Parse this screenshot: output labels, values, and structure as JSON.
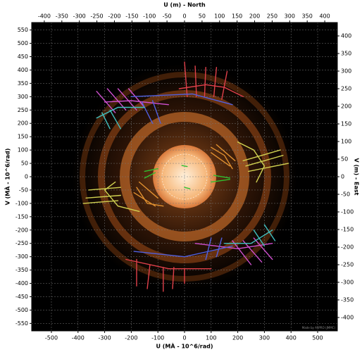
{
  "chart_data": {
    "type": "uv-coverage",
    "x_label": "U (MÀ - 10^6/rad)",
    "y_label": "V (MÀ - 10^6/rad)",
    "x2_label": "U (m) - North",
    "y2_label": "V (m) - East",
    "credit": "Made by ASPRO (JMMC)",
    "xlim": [
      -574,
      574
    ],
    "xticks": [
      -500,
      -400,
      -300,
      -200,
      -100,
      0,
      100,
      200,
      300,
      400,
      500
    ],
    "ylim": [
      -578,
      578
    ],
    "yticks": [
      -550,
      -500,
      -450,
      -400,
      -350,
      -300,
      -250,
      -200,
      -150,
      -100,
      -50,
      0,
      50,
      100,
      150,
      200,
      250,
      300,
      350,
      400,
      450,
      500,
      550
    ],
    "x2lim": [
      -436,
      436
    ],
    "x2ticks": [
      -400,
      -350,
      -300,
      -250,
      -200,
      -150,
      -100,
      -50,
      0,
      50,
      100,
      150,
      200,
      250,
      300,
      350,
      400
    ],
    "y2lim": [
      -438,
      438
    ],
    "y2ticks": [
      -400,
      -350,
      -300,
      -250,
      -200,
      -150,
      -100,
      -50,
      0,
      50,
      100,
      150,
      200,
      250,
      300,
      350,
      400
    ],
    "grid": true,
    "series": [
      {
        "color": "#e0404a",
        "x": [
          -20,
          80,
          150,
          220,
          null,
          0,
          10,
          null,
          40,
          45,
          null,
          80,
          75,
          null,
          120,
          110,
          null,
          160,
          140,
          null,
          -220,
          -60,
          100,
          null,
          -180,
          -180,
          null,
          -130,
          -140,
          null,
          -80,
          -80,
          null,
          -40,
          -45,
          null,
          0,
          0
        ],
        "y": [
          330,
          345,
          335,
          300,
          null,
          430,
          300,
          null,
          415,
          300,
          null,
          410,
          300,
          null,
          410,
          300,
          null,
          395,
          290,
          null,
          -310,
          -345,
          -345,
          null,
          -310,
          -410,
          null,
          -330,
          -420,
          null,
          -340,
          -430,
          null,
          -340,
          -420,
          null,
          -345,
          -400
        ]
      },
      {
        "color": "#d050d0",
        "x": [
          -330,
          -260,
          null,
          -290,
          -220,
          null,
          -250,
          -180,
          null,
          -210,
          -150,
          null,
          -300,
          -200,
          -60,
          null,
          260,
          330,
          null,
          220,
          290,
          null,
          180,
          250,
          null,
          40,
          200,
          330
        ],
        "y": [
          320,
          240,
          null,
          330,
          250,
          null,
          330,
          250,
          null,
          330,
          260,
          null,
          280,
          285,
          270,
          null,
          -230,
          -310,
          null,
          -240,
          -320,
          null,
          -240,
          -330,
          null,
          -250,
          -270,
          -250
        ]
      },
      {
        "color": "#5060e0",
        "x": [
          -200,
          30,
          180,
          null,
          -160,
          -120,
          null,
          -120,
          -90,
          null,
          -190,
          0,
          180,
          null,
          100,
          80,
          null,
          140,
          120
        ],
        "y": [
          300,
          310,
          270,
          null,
          280,
          200,
          null,
          285,
          200,
          null,
          -280,
          -300,
          -260,
          null,
          -230,
          -310,
          null,
          -230,
          -300
        ]
      },
      {
        "color": "#40c0c0",
        "x": [
          -330,
          -250,
          -150,
          null,
          -310,
          -280,
          null,
          -280,
          -240,
          null,
          150,
          250,
          330,
          null,
          300,
          340,
          null,
          260,
          300
        ],
        "y": [
          220,
          260,
          260,
          null,
          240,
          180,
          null,
          250,
          180,
          null,
          -250,
          -250,
          -200,
          null,
          -180,
          -240,
          null,
          -200,
          -260
        ]
      },
      {
        "color": "#d0d050",
        "x": [
          200,
          260,
          300,
          270,
          null,
          220,
          360,
          null,
          230,
          370,
          null,
          240,
          390,
          null,
          -260,
          -300,
          -250,
          -170,
          null,
          -360,
          -240,
          null,
          -370,
          -240,
          null,
          -380,
          -250
        ],
        "y": [
          130,
          100,
          40,
          -20,
          null,
          60,
          100,
          null,
          40,
          80,
          null,
          20,
          50,
          null,
          -20,
          -50,
          -110,
          -130,
          null,
          -50,
          -40,
          null,
          -80,
          -70,
          null,
          -100,
          -90
        ]
      },
      {
        "color": "#e09030",
        "x": [
          100,
          150,
          180,
          null,
          120,
          190,
          null,
          100,
          170,
          null,
          -180,
          -140,
          -80,
          null,
          -190,
          -110,
          null,
          -170,
          -100
        ],
        "y": [
          110,
          80,
          30,
          null,
          120,
          60,
          null,
          90,
          40,
          null,
          -40,
          -100,
          -110,
          null,
          -60,
          -110,
          null,
          -20,
          -80
        ]
      },
      {
        "color": "#30c030",
        "x": [
          -150,
          -100,
          null,
          -150,
          -110,
          null,
          100,
          170,
          null,
          110,
          170,
          null,
          -10,
          10,
          null,
          0,
          20
        ],
        "y": [
          20,
          30,
          null,
          -5,
          15,
          null,
          -20,
          -10,
          null,
          5,
          -5,
          null,
          42,
          38,
          null,
          -40,
          -45
        ]
      }
    ]
  }
}
